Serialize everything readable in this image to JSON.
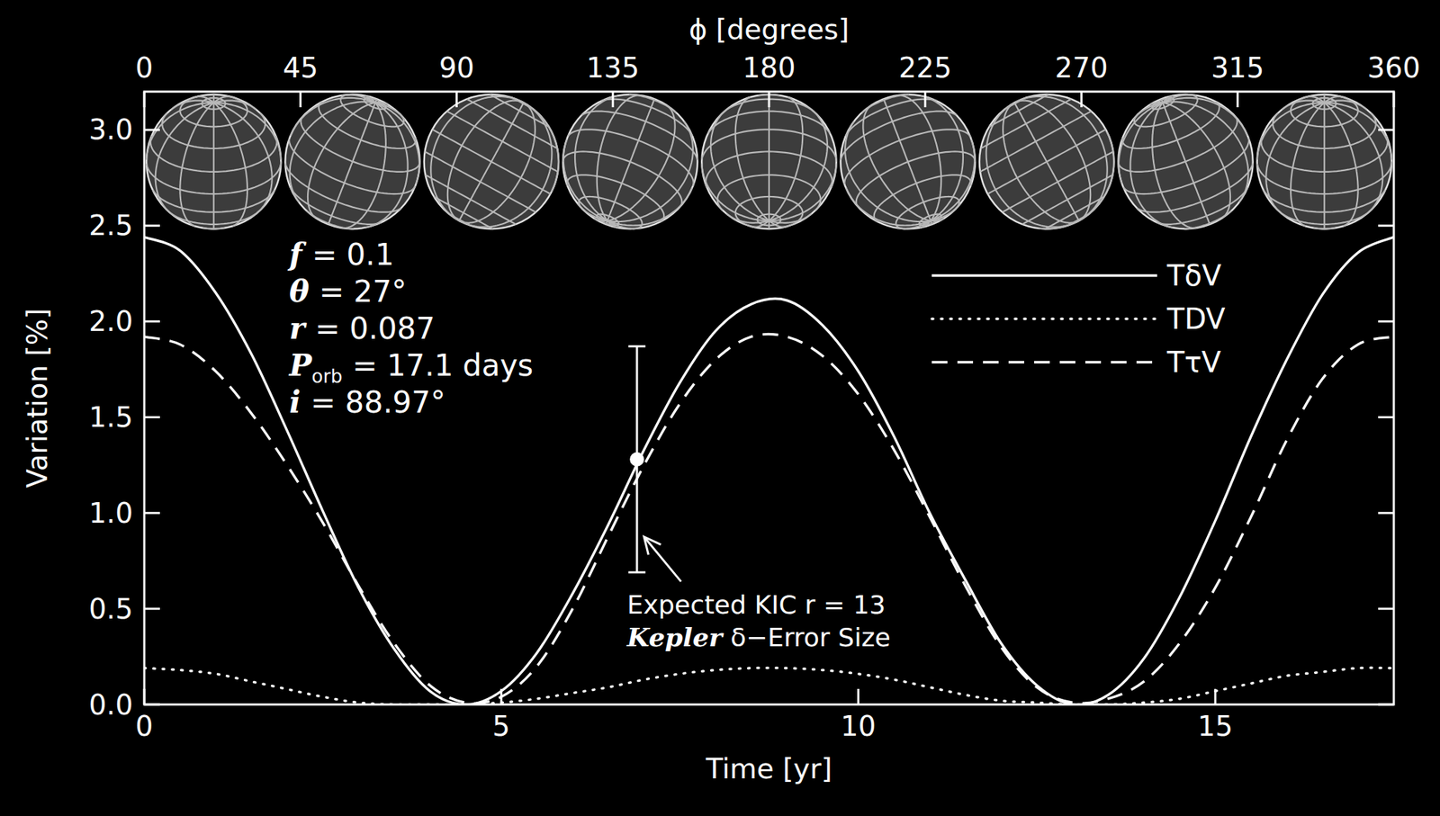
{
  "chart_data": {
    "type": "line",
    "x_label": "Time [yr]",
    "y_label": "Variation [%]",
    "x2_label": "ϕ [degrees]",
    "xlim": [
      0,
      17.5
    ],
    "xticks": [
      0,
      5,
      10,
      15
    ],
    "x2lim": [
      0,
      360
    ],
    "x2ticks": [
      0,
      45,
      90,
      135,
      180,
      225,
      270,
      315,
      360
    ],
    "ylim": [
      0,
      3.2
    ],
    "yticks": [
      {
        "value": 0,
        "label": "0.0"
      },
      {
        "value": 0.5,
        "label": "0.5"
      },
      {
        "value": 1,
        "label": "1.0"
      },
      {
        "value": 1.5,
        "label": "1.5"
      },
      {
        "value": 2,
        "label": "2.0"
      },
      {
        "value": 2.5,
        "label": "2.5"
      },
      {
        "value": 3,
        "label": "3.0"
      }
    ],
    "legend": "upper right",
    "x": [
      0,
      0.5,
      1,
      1.5,
      2,
      2.5,
      3,
      3.5,
      4,
      4.5,
      5,
      5.5,
      6,
      6.5,
      7,
      7.5,
      8,
      8.5,
      9,
      9.5,
      10,
      10.5,
      11,
      11.5,
      12,
      12.5,
      13,
      13.5,
      14,
      14.5,
      15,
      15.5,
      16,
      16.5,
      17,
      17.5
    ],
    "series": [
      {
        "name": "TδV",
        "color": "#ffffff",
        "line_style": "solid",
        "values": [
          2.44,
          2.37,
          2.15,
          1.83,
          1.43,
          1.01,
          0.61,
          0.29,
          0.07,
          0.0,
          0.07,
          0.27,
          0.58,
          0.94,
          1.33,
          1.68,
          1.95,
          2.09,
          2.11,
          1.98,
          1.74,
          1.4,
          1.0,
          0.65,
          0.32,
          0.1,
          0.0,
          0.05,
          0.24,
          0.56,
          0.96,
          1.4,
          1.8,
          2.14,
          2.36,
          2.44
        ]
      },
      {
        "name": "TDV",
        "color": "#ffffff",
        "line_style": "dotted",
        "values": [
          0.19,
          0.18,
          0.16,
          0.12,
          0.08,
          0.04,
          0.01,
          0.0,
          0.0,
          0.0,
          0.01,
          0.03,
          0.06,
          0.09,
          0.13,
          0.16,
          0.18,
          0.19,
          0.19,
          0.18,
          0.16,
          0.13,
          0.09,
          0.05,
          0.02,
          0.01,
          0.0,
          0.0,
          0.01,
          0.03,
          0.07,
          0.11,
          0.15,
          0.17,
          0.19,
          0.19
        ]
      },
      {
        "name": "TτV",
        "color": "#ffffff",
        "line_style": "dashed",
        "values": [
          1.92,
          1.88,
          1.74,
          1.52,
          1.25,
          0.95,
          0.62,
          0.32,
          0.1,
          0.01,
          0.04,
          0.2,
          0.5,
          0.88,
          1.25,
          1.57,
          1.8,
          1.92,
          1.92,
          1.82,
          1.62,
          1.33,
          0.98,
          0.62,
          0.3,
          0.09,
          0.01,
          0.03,
          0.12,
          0.32,
          0.61,
          0.98,
          1.38,
          1.7,
          1.88,
          1.92
        ]
      }
    ],
    "params": [
      {
        "symbol": "f",
        "text": "= 0.1"
      },
      {
        "symbol": "θ",
        "text": "= 27°"
      },
      {
        "symbol": "r",
        "text": "= 0.087"
      },
      {
        "symbol": "P",
        "subscript": "orb",
        "text": "= 17.1 days"
      },
      {
        "symbol": "i",
        "text": "= 88.97°"
      }
    ],
    "error_bar": {
      "x": 6.9,
      "y": 1.28,
      "error": 0.59
    },
    "annotations": [
      "Expected KIC r = 13",
      "Kepler δ−Error Size"
    ]
  }
}
